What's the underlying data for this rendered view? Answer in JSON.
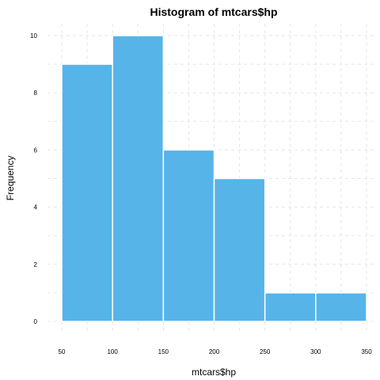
{
  "chart_data": {
    "type": "bar",
    "title": "Histogram of mtcars$hp",
    "xlabel": "mtcars$hp",
    "ylabel": "Frequency",
    "bins": [
      {
        "from": 50,
        "to": 100,
        "count": 9
      },
      {
        "from": 100,
        "to": 150,
        "count": 10
      },
      {
        "from": 150,
        "to": 200,
        "count": 6
      },
      {
        "from": 200,
        "to": 250,
        "count": 5
      },
      {
        "from": 250,
        "to": 300,
        "count": 1
      },
      {
        "from": 300,
        "to": 350,
        "count": 1
      }
    ],
    "xlim": [
      50,
      350
    ],
    "ylim": [
      0,
      10
    ],
    "xticks": [
      "50",
      "100",
      "150",
      "200",
      "250",
      "300",
      "350"
    ],
    "yticks": [
      "0",
      "2",
      "4",
      "6",
      "8",
      "10"
    ],
    "bar_color": "#56B4E9",
    "bar_edge_color": "#ffffff",
    "grid": true
  }
}
